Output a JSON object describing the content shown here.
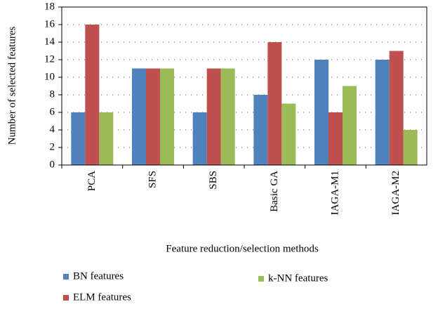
{
  "chart_data": {
    "type": "bar",
    "categories": [
      "PCA",
      "SFS",
      "SBS",
      "Basic GA",
      "IAGA-M1",
      "IAGA-M2"
    ],
    "series": [
      {
        "name": "BN features",
        "color": "#4f81bd",
        "values": [
          6,
          11,
          6,
          8,
          12,
          12
        ]
      },
      {
        "name": "ELM features",
        "color": "#c0504d",
        "values": [
          16,
          11,
          11,
          14,
          6,
          13
        ]
      },
      {
        "name": "k-NN features",
        "color": "#9bbb59",
        "values": [
          6,
          11,
          11,
          7,
          9,
          4
        ]
      }
    ],
    "x_label": "Feature reduction/selection methods",
    "y_label": "Number of selected features",
    "ylim": [
      0,
      18
    ],
    "yticks": [
      0,
      2,
      4,
      6,
      8,
      10,
      12,
      14,
      16,
      18
    ],
    "grid": true
  }
}
